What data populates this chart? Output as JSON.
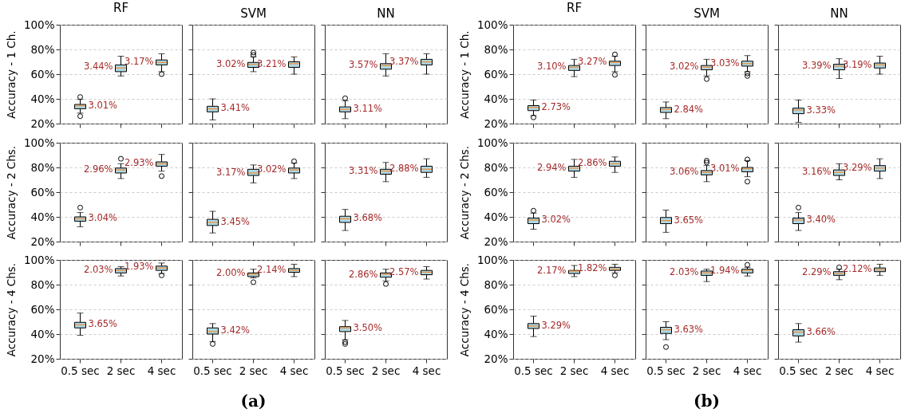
{
  "chart_data": [
    {
      "type": "box",
      "title": "RF",
      "ylabel": "Accuracy - 1 Ch.",
      "tick_labels": "y",
      "grid": "y",
      "categories": [
        "0.5 sec",
        "2 sec",
        "4 sec"
      ],
      "ylim": [
        20,
        100
      ],
      "yticks": [
        {
          "value": 20,
          "label": "20%"
        },
        {
          "value": 40,
          "label": "40%"
        },
        {
          "value": 60,
          "label": "60%"
        },
        {
          "value": 80,
          "label": "80%"
        },
        {
          "value": 100,
          "label": "100%"
        }
      ],
      "series": [
        {
          "color": "#add8e6",
          "boxes": [
            {
              "low": 28.5,
              "q1": 32,
              "median": 34.5,
              "q3": 35.5,
              "high": 39.5,
              "outliers": [
                41.5,
                26
              ]
            },
            {
              "low": 58.5,
              "q1": 62,
              "median": 65,
              "q3": 67.5,
              "high": 74.5
            },
            {
              "low": 62,
              "q1": 67.5,
              "median": 69.5,
              "q3": 71.5,
              "high": 76.5,
              "outliers": [
                60
              ]
            }
          ]
        }
      ],
      "annotations": [
        {
          "text": "3.01%",
          "x": "0.5 sec",
          "y": 34
        },
        {
          "text": "3.44%",
          "x": "2 sec",
          "y": 65.5
        },
        {
          "text": "3.17%",
          "x": "4 sec",
          "y": 70
        }
      ]
    },
    {
      "type": "box",
      "title": "SVM",
      "tick_labels": false,
      "grid": "y",
      "categories": [
        "0.5 sec",
        "2 sec",
        "4 sec"
      ],
      "ylim": [
        20,
        100
      ],
      "yticks": [
        {
          "value": 20,
          "label": "20%"
        },
        {
          "value": 40,
          "label": "40%"
        },
        {
          "value": 60,
          "label": "60%"
        },
        {
          "value": 80,
          "label": "80%"
        },
        {
          "value": 100,
          "label": "100%"
        }
      ],
      "series": [
        {
          "color": "#add8e6",
          "boxes": [
            {
              "low": 23,
              "q1": 29.5,
              "median": 32,
              "q3": 34,
              "high": 40
            },
            {
              "low": 62,
              "q1": 65.5,
              "median": 68,
              "q3": 69.5,
              "high": 74,
              "outliers": [
                77.5,
                75.5
              ]
            },
            {
              "low": 60,
              "q1": 65.5,
              "median": 68.5,
              "q3": 70,
              "high": 74
            }
          ]
        }
      ],
      "annotations": [
        {
          "text": "3.41%",
          "x": "0.5 sec",
          "y": 32
        },
        {
          "text": "3.02%",
          "x": "2 sec",
          "y": 68
        },
        {
          "text": "3.21%",
          "x": "4 sec",
          "y": 68
        }
      ]
    },
    {
      "type": "box",
      "title": "NN",
      "tick_labels": false,
      "grid": "y",
      "categories": [
        "0.5 sec",
        "2 sec",
        "4 sec"
      ],
      "ylim": [
        20,
        100
      ],
      "yticks": [
        {
          "value": 20,
          "label": "20%"
        },
        {
          "value": 40,
          "label": "40%"
        },
        {
          "value": 60,
          "label": "60%"
        },
        {
          "value": 80,
          "label": "80%"
        },
        {
          "value": 100,
          "label": "100%"
        }
      ],
      "series": [
        {
          "color": "#add8e6",
          "boxes": [
            {
              "low": 24,
              "q1": 29.5,
              "median": 31.5,
              "q3": 33.5,
              "high": 38.5,
              "outliers": [
                40.5
              ]
            },
            {
              "low": 58.5,
              "q1": 64,
              "median": 67,
              "q3": 68.5,
              "high": 76.5
            },
            {
              "low": 60,
              "q1": 67.5,
              "median": 70,
              "q3": 72,
              "high": 76.5
            }
          ]
        }
      ],
      "annotations": [
        {
          "text": "3.11%",
          "x": "0.5 sec",
          "y": 31.5
        },
        {
          "text": "3.57%",
          "x": "2 sec",
          "y": 67
        },
        {
          "text": "3.37%",
          "x": "4 sec",
          "y": 70
        }
      ]
    },
    {
      "type": "box",
      "ylabel": "Accuracy - 2 Chs.",
      "tick_labels": "y",
      "grid": "y",
      "categories": [
        "0.5 sec",
        "2 sec",
        "4 sec"
      ],
      "ylim": [
        20,
        100
      ],
      "yticks": [
        {
          "value": 20,
          "label": "20%"
        },
        {
          "value": 40,
          "label": "40%"
        },
        {
          "value": 60,
          "label": "60%"
        },
        {
          "value": 80,
          "label": "80%"
        },
        {
          "value": 100,
          "label": "100%"
        }
      ],
      "series": [
        {
          "color": "#add8e6",
          "boxes": [
            {
              "low": 32,
              "q1": 36.5,
              "median": 38.5,
              "q3": 40,
              "high": 43.5,
              "outliers": [
                47.5
              ]
            },
            {
              "low": 71,
              "q1": 75.5,
              "median": 78,
              "q3": 79.5,
              "high": 83,
              "outliers": [
                87
              ]
            },
            {
              "low": 77,
              "q1": 81,
              "median": 83,
              "q3": 84.5,
              "high": 90.5,
              "outliers": [
                73
              ]
            }
          ]
        }
      ],
      "annotations": [
        {
          "text": "3.04%",
          "x": "0.5 sec",
          "y": 38.5
        },
        {
          "text": "2.96%",
          "x": "2 sec",
          "y": 78
        },
        {
          "text": "2.93%",
          "x": "4 sec",
          "y": 83
        }
      ]
    },
    {
      "type": "box",
      "tick_labels": false,
      "grid": "y",
      "categories": [
        "0.5 sec",
        "2 sec",
        "4 sec"
      ],
      "ylim": [
        20,
        100
      ],
      "yticks": [
        {
          "value": 20,
          "label": "20%"
        },
        {
          "value": 40,
          "label": "40%"
        },
        {
          "value": 60,
          "label": "60%"
        },
        {
          "value": 80,
          "label": "80%"
        },
        {
          "value": 100,
          "label": "100%"
        }
      ],
      "series": [
        {
          "color": "#add8e6",
          "boxes": [
            {
              "low": 27,
              "q1": 33,
              "median": 35.5,
              "q3": 38,
              "high": 44.5
            },
            {
              "low": 67.5,
              "q1": 73.5,
              "median": 75.5,
              "q3": 78.5,
              "high": 82
            },
            {
              "low": 71,
              "q1": 75.5,
              "median": 78,
              "q3": 79.5,
              "high": 83.5,
              "outliers": [
                85
              ]
            }
          ]
        }
      ],
      "annotations": [
        {
          "text": "3.45%",
          "x": "0.5 sec",
          "y": 35.5
        },
        {
          "text": "3.17%",
          "x": "2 sec",
          "y": 75.5
        },
        {
          "text": "3.02%",
          "x": "4 sec",
          "y": 78
        }
      ]
    },
    {
      "type": "box",
      "tick_labels": false,
      "grid": "y",
      "categories": [
        "0.5 sec",
        "2 sec",
        "4 sec"
      ],
      "ylim": [
        20,
        100
      ],
      "yticks": [
        {
          "value": 20,
          "label": "20%"
        },
        {
          "value": 40,
          "label": "40%"
        },
        {
          "value": 60,
          "label": "60%"
        },
        {
          "value": 80,
          "label": "80%"
        },
        {
          "value": 100,
          "label": "100%"
        }
      ],
      "series": [
        {
          "color": "#add8e6",
          "boxes": [
            {
              "low": 29,
              "q1": 35.5,
              "median": 38.5,
              "q3": 40.5,
              "high": 46
            },
            {
              "low": 68.5,
              "q1": 74.5,
              "median": 77,
              "q3": 78.5,
              "high": 84
            },
            {
              "low": 72,
              "q1": 76,
              "median": 78.5,
              "q3": 81,
              "high": 87
            }
          ]
        }
      ],
      "annotations": [
        {
          "text": "3.68%",
          "x": "0.5 sec",
          "y": 38.5
        },
        {
          "text": "3.31%",
          "x": "2 sec",
          "y": 77
        },
        {
          "text": "2.88%",
          "x": "4 sec",
          "y": 79
        }
      ]
    },
    {
      "type": "box",
      "ylabel": "Accuracy - 4 Chs.",
      "grid": "y",
      "categories": [
        "0.5 sec",
        "2 sec",
        "4 sec"
      ],
      "ylim": [
        20,
        100
      ],
      "yticks": [
        {
          "value": 20,
          "label": "20%"
        },
        {
          "value": 40,
          "label": "40%"
        },
        {
          "value": 60,
          "label": "60%"
        },
        {
          "value": 80,
          "label": "80%"
        },
        {
          "value": 100,
          "label": "100%"
        }
      ],
      "series": [
        {
          "color": "#add8e6",
          "boxes": [
            {
              "low": 39,
              "q1": 45,
              "median": 47.5,
              "q3": 49.5,
              "high": 57
            },
            {
              "low": 87,
              "q1": 89.5,
              "median": 91.5,
              "q3": 93,
              "high": 94.5
            },
            {
              "low": 89,
              "q1": 91.5,
              "median": 93.5,
              "q3": 95,
              "high": 97.5,
              "outliers": [
                87.5
              ]
            }
          ]
        }
      ],
      "annotations": [
        {
          "text": "3.65%",
          "x": "0.5 sec",
          "y": 47.5
        },
        {
          "text": "2.03%",
          "x": "2 sec",
          "y": 91.5
        },
        {
          "text": "1.93%",
          "x": "4 sec",
          "y": 94
        }
      ]
    },
    {
      "type": "box",
      "tick_labels": "x",
      "grid": "y",
      "categories": [
        "0.5 sec",
        "2 sec",
        "4 sec"
      ],
      "ylim": [
        20,
        100
      ],
      "yticks": [
        {
          "value": 20,
          "label": "20%"
        },
        {
          "value": 40,
          "label": "40%"
        },
        {
          "value": 60,
          "label": "60%"
        },
        {
          "value": 80,
          "label": "80%"
        },
        {
          "value": 100,
          "label": "100%"
        }
      ],
      "series": [
        {
          "color": "#add8e6",
          "boxes": [
            {
              "low": 34,
              "q1": 40,
              "median": 42,
              "q3": 45,
              "high": 48.5,
              "outliers": [
                32
              ]
            },
            {
              "low": 85.5,
              "q1": 86.5,
              "median": 88.5,
              "q3": 89.5,
              "high": 92.5,
              "outliers": [
                82
              ]
            },
            {
              "low": 86.5,
              "q1": 90,
              "median": 91.5,
              "q3": 93,
              "high": 96.5
            }
          ]
        }
      ],
      "annotations": [
        {
          "text": "3.42%",
          "x": "0.5 sec",
          "y": 42.5
        },
        {
          "text": "2.00%",
          "x": "2 sec",
          "y": 89
        },
        {
          "text": "2.14%",
          "x": "4 sec",
          "y": 91.5
        },
        "(a)"
      ]
    },
    {
      "type": "box",
      "tick_labels": "x",
      "grid": "y",
      "categories": [
        "0.5 sec",
        "2 sec",
        "4 sec"
      ],
      "ylim": [
        20,
        100
      ],
      "yticks": [
        {
          "value": 20,
          "label": "20%"
        },
        {
          "value": 40,
          "label": "40%"
        },
        {
          "value": 60,
          "label": "60%"
        },
        {
          "value": 80,
          "label": "80%"
        },
        {
          "value": 100,
          "label": "100%"
        }
      ],
      "series": [
        {
          "color": "#add8e6",
          "boxes": [
            {
              "low": 35.5,
              "q1": 42,
              "median": 45,
              "q3": 46,
              "high": 51,
              "outliers": [
                33.5,
                32
              ]
            },
            {
              "low": 83,
              "q1": 86,
              "median": 88.5,
              "q3": 89.5,
              "high": 92.5,
              "outliers": [
                80.5
              ]
            },
            {
              "low": 84.5,
              "q1": 88,
              "median": 90,
              "q3": 91.5,
              "high": 94.5
            }
          ]
        }
      ],
      "annotations": [
        {
          "text": "3.50%",
          "x": "0.5 sec",
          "y": 44.5
        },
        {
          "text": "2.86%",
          "x": "2 sec",
          "y": 88
        },
        {
          "text": "2.57%",
          "x": "4 sec",
          "y": 89.5
        }
      ]
    },
    {
      "type": "box",
      "title": "RF",
      "ylabel": "Accuracy - 1 Ch.",
      "tick_labels": "y",
      "grid": "y",
      "categories": [
        "0.5 sec",
        "2 sec",
        "4 sec"
      ],
      "ylim": [
        20,
        100
      ],
      "yticks": [
        {
          "value": 20,
          "label": "20%"
        },
        {
          "value": 40,
          "label": "40%"
        },
        {
          "value": 60,
          "label": "60%"
        },
        {
          "value": 80,
          "label": "80%"
        },
        {
          "value": 100,
          "label": "100%"
        }
      ],
      "series": [
        {
          "color": "#add8e6",
          "boxes": [
            {
              "low": 26.5,
              "q1": 30.5,
              "median": 33,
              "q3": 34.5,
              "high": 39,
              "outliers": [
                25
              ]
            },
            {
              "low": 58,
              "q1": 63,
              "median": 65.5,
              "q3": 67,
              "high": 72
            },
            {
              "low": 62,
              "q1": 67,
              "median": 69.5,
              "q3": 70.5,
              "high": 74.5,
              "outliers": [
                76,
                59.5
              ]
            }
          ]
        }
      ],
      "annotations": [
        {
          "text": "2.73%",
          "x": "0.5 sec",
          "y": 33
        },
        {
          "text": "3.10%",
          "x": "2 sec",
          "y": 65.5
        },
        {
          "text": "3.27%",
          "x": "4 sec",
          "y": 69.5
        }
      ]
    },
    {
      "type": "box",
      "title": "SVM",
      "tick_labels": false,
      "grid": "y",
      "categories": [
        "0.5 sec",
        "2 sec",
        "4 sec"
      ],
      "ylim": [
        20,
        100
      ],
      "yticks": [
        {
          "value": 20,
          "label": "20%"
        },
        {
          "value": 40,
          "label": "40%"
        },
        {
          "value": 60,
          "label": "60%"
        },
        {
          "value": 80,
          "label": "80%"
        },
        {
          "value": 100,
          "label": "100%"
        }
      ],
      "series": [
        {
          "color": "#add8e6",
          "boxes": [
            {
              "low": 24,
              "q1": 29,
              "median": 31.5,
              "q3": 33,
              "high": 37.5
            },
            {
              "low": 58.5,
              "q1": 63.5,
              "median": 65.5,
              "q3": 67,
              "high": 72,
              "outliers": [
                56
              ]
            },
            {
              "low": 62,
              "q1": 66.5,
              "median": 68.5,
              "q3": 70.5,
              "high": 75,
              "outliers": [
                60.5,
                58.5
              ]
            }
          ]
        }
      ],
      "annotations": [
        {
          "text": "2.84%",
          "x": "0.5 sec",
          "y": 31
        },
        {
          "text": "3.02%",
          "x": "2 sec",
          "y": 65.5
        },
        {
          "text": "3.03%",
          "x": "4 sec",
          "y": 68.5
        }
      ]
    },
    {
      "type": "box",
      "title": "NN",
      "tick_labels": false,
      "grid": "y",
      "categories": [
        "0.5 sec",
        "2 sec",
        "4 sec"
      ],
      "ylim": [
        20,
        100
      ],
      "yticks": [
        {
          "value": 20,
          "label": "20%"
        },
        {
          "value": 40,
          "label": "40%"
        },
        {
          "value": 60,
          "label": "60%"
        },
        {
          "value": 80,
          "label": "80%"
        },
        {
          "value": 100,
          "label": "100%"
        }
      ],
      "series": [
        {
          "color": "#add8e6",
          "boxes": [
            {
              "low": 21,
              "q1": 28,
              "median": 31,
              "q3": 32.5,
              "high": 39
            },
            {
              "low": 56.5,
              "q1": 63.5,
              "median": 66.5,
              "q3": 68,
              "high": 72.5
            },
            {
              "low": 60,
              "q1": 65,
              "median": 67.5,
              "q3": 69,
              "high": 74.5
            }
          ]
        }
      ],
      "annotations": [
        {
          "text": "3.33%",
          "x": "0.5 sec",
          "y": 30.5
        },
        {
          "text": "3.39%",
          "x": "2 sec",
          "y": 66.5
        },
        {
          "text": "3.19%",
          "x": "4 sec",
          "y": 67
        }
      ]
    },
    {
      "type": "box",
      "ylabel": "Accuracy - 2 Chs.",
      "tick_labels": "y",
      "grid": "y",
      "categories": [
        "0.5 sec",
        "2 sec",
        "4 sec"
      ],
      "ylim": [
        20,
        100
      ],
      "yticks": [
        {
          "value": 20,
          "label": "20%"
        },
        {
          "value": 40,
          "label": "40%"
        },
        {
          "value": 60,
          "label": "60%"
        },
        {
          "value": 80,
          "label": "80%"
        },
        {
          "value": 100,
          "label": "100%"
        }
      ],
      "series": [
        {
          "color": "#add8e6",
          "boxes": [
            {
              "low": 30,
              "q1": 34.5,
              "median": 37.5,
              "q3": 39,
              "high": 43,
              "outliers": [
                45
              ]
            },
            {
              "low": 72,
              "q1": 77,
              "median": 79.5,
              "q3": 81,
              "high": 86.5
            },
            {
              "low": 76,
              "q1": 81,
              "median": 83,
              "q3": 85,
              "high": 88.5
            }
          ]
        }
      ],
      "annotations": [
        {
          "text": "3.02%",
          "x": "0.5 sec",
          "y": 37.5
        },
        {
          "text": "2.94%",
          "x": "2 sec",
          "y": 79.5
        },
        {
          "text": "2.86%",
          "x": "4 sec",
          "y": 83.5
        }
      ]
    },
    {
      "type": "box",
      "tick_labels": false,
      "grid": "y",
      "categories": [
        "0.5 sec",
        "2 sec",
        "4 sec"
      ],
      "ylim": [
        20,
        100
      ],
      "yticks": [
        {
          "value": 20,
          "label": "20%"
        },
        {
          "value": 40,
          "label": "40%"
        },
        {
          "value": 60,
          "label": "60%"
        },
        {
          "value": 80,
          "label": "80%"
        },
        {
          "value": 100,
          "label": "100%"
        }
      ],
      "series": [
        {
          "color": "#add8e6",
          "boxes": [
            {
              "low": 27.5,
              "q1": 34.5,
              "median": 37,
              "q3": 39.5,
              "high": 45.5
            },
            {
              "low": 68.5,
              "q1": 74,
              "median": 76,
              "q3": 77.5,
              "high": 81.5,
              "outliers": [
                85.5,
                84
              ]
            },
            {
              "low": 72.5,
              "q1": 76.5,
              "median": 79,
              "q3": 80,
              "high": 85.5,
              "outliers": [
                86.5,
                68.5
              ]
            }
          ]
        }
      ],
      "annotations": [
        {
          "text": "3.65%",
          "x": "0.5 sec",
          "y": 37
        },
        {
          "text": "3.06%",
          "x": "2 sec",
          "y": 76
        },
        {
          "text": "3.01%",
          "x": "4 sec",
          "y": 79
        }
      ]
    },
    {
      "type": "box",
      "tick_labels": false,
      "grid": "y",
      "categories": [
        "0.5 sec",
        "2 sec",
        "4 sec"
      ],
      "ylim": [
        20,
        100
      ],
      "yticks": [
        {
          "value": 20,
          "label": "20%"
        },
        {
          "value": 40,
          "label": "40%"
        },
        {
          "value": 60,
          "label": "60%"
        },
        {
          "value": 80,
          "label": "80%"
        },
        {
          "value": 100,
          "label": "100%"
        }
      ],
      "series": [
        {
          "color": "#add8e6",
          "boxes": [
            {
              "low": 29,
              "q1": 34.5,
              "median": 37.5,
              "q3": 39,
              "high": 43.5,
              "outliers": [
                47.5
              ]
            },
            {
              "low": 70,
              "q1": 73.5,
              "median": 76,
              "q3": 78,
              "high": 83
            },
            {
              "low": 71,
              "q1": 77,
              "median": 79.5,
              "q3": 81.5,
              "high": 87
            }
          ]
        }
      ],
      "annotations": [
        {
          "text": "3.40%",
          "x": "0.5 sec",
          "y": 37.5
        },
        {
          "text": "3.16%",
          "x": "2 sec",
          "y": 76
        },
        {
          "text": "3.29%",
          "x": "4 sec",
          "y": 79.5
        }
      ]
    },
    {
      "type": "box",
      "ylabel": "Accuracy - 4 Chs.",
      "grid": "y",
      "categories": [
        "0.5 sec",
        "2 sec",
        "4 sec"
      ],
      "ylim": [
        20,
        100
      ],
      "yticks": [
        {
          "value": 20,
          "label": "20%"
        },
        {
          "value": 40,
          "label": "40%"
        },
        {
          "value": 60,
          "label": "60%"
        },
        {
          "value": 80,
          "label": "80%"
        },
        {
          "value": 100,
          "label": "100%"
        }
      ],
      "series": [
        {
          "color": "#add8e6",
          "boxes": [
            {
              "low": 38,
              "q1": 44.5,
              "median": 46.5,
              "q3": 48.5,
              "high": 54.5
            },
            {
              "low": 86.5,
              "q1": 89,
              "median": 91,
              "q3": 91.5,
              "high": 95.5
            },
            {
              "low": 89.5,
              "q1": 91.5,
              "median": 92.5,
              "q3": 94,
              "high": 96.5,
              "outliers": [
                87.5
              ]
            }
          ]
        }
      ],
      "annotations": [
        {
          "text": "3.29%",
          "x": "0.5 sec",
          "y": 46.5
        },
        {
          "text": "2.17%",
          "x": "2 sec",
          "y": 91
        },
        {
          "text": "1.82%",
          "x": "4 sec",
          "y": 93
        }
      ]
    },
    {
      "type": "box",
      "tick_labels": "x",
      "grid": "y",
      "categories": [
        "0.5 sec",
        "2 sec",
        "4 sec"
      ],
      "ylim": [
        20,
        100
      ],
      "yticks": [
        {
          "value": 20,
          "label": "20%"
        },
        {
          "value": 40,
          "label": "40%"
        },
        {
          "value": 60,
          "label": "60%"
        },
        {
          "value": 80,
          "label": "80%"
        },
        {
          "value": 100,
          "label": "100%"
        }
      ],
      "series": [
        {
          "color": "#add8e6",
          "boxes": [
            {
              "low": 35.5,
              "q1": 40.5,
              "median": 43.5,
              "q3": 45.5,
              "high": 50,
              "outliers": [
                29.5
              ]
            },
            {
              "low": 82.5,
              "q1": 87.5,
              "median": 89.5,
              "q3": 91,
              "high": 92.5
            },
            {
              "low": 87,
              "q1": 89.5,
              "median": 91.5,
              "q3": 92.5,
              "high": 94,
              "outliers": [
                96
              ]
            }
          ]
        }
      ],
      "annotations": [
        {
          "text": "3.63%",
          "x": "0.5 sec",
          "y": 43
        },
        {
          "text": "2.03%",
          "x": "2 sec",
          "y": 89.5
        },
        {
          "text": "1.94%",
          "x": "4 sec",
          "y": 91
        },
        "(b)"
      ]
    },
    {
      "type": "box",
      "tick_labels": "x",
      "grid": "y",
      "categories": [
        "0.5 sec",
        "2 sec",
        "4 sec"
      ],
      "ylim": [
        20,
        100
      ],
      "yticks": [
        {
          "value": 20,
          "label": "20%"
        },
        {
          "value": 40,
          "label": "40%"
        },
        {
          "value": 60,
          "label": "60%"
        },
        {
          "value": 80,
          "label": "80%"
        },
        {
          "value": 100,
          "label": "100%"
        }
      ],
      "series": [
        {
          "color": "#add8e6",
          "boxes": [
            {
              "low": 33.5,
              "q1": 38.5,
              "median": 41.5,
              "q3": 43.5,
              "high": 48.5
            },
            {
              "low": 84,
              "q1": 87.5,
              "median": 89,
              "q3": 90.5,
              "high": 92.5,
              "outliers": [
                94
              ]
            },
            {
              "low": 87.5,
              "q1": 90.5,
              "median": 92,
              "q3": 93.5,
              "high": 96.5
            }
          ]
        }
      ],
      "annotations": [
        {
          "text": "3.66%",
          "x": "0.5 sec",
          "y": 41.5
        },
        {
          "text": "2.29%",
          "x": "2 sec",
          "y": 89.5
        },
        {
          "text": "2.12%",
          "x": "4 sec",
          "y": 92
        }
      ]
    }
  ]
}
